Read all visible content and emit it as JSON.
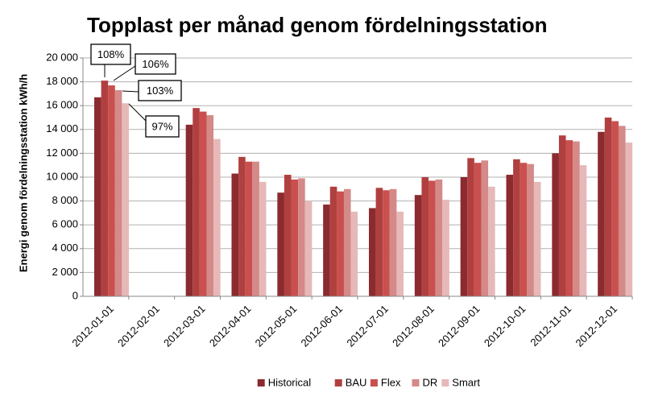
{
  "chart_data": {
    "type": "bar",
    "title": "Topplast per månad genom fördelningsstation",
    "y_label": "Energi genom fördelningsstation  kWh/h",
    "categories": [
      "2012-01-01",
      "2012-02-01",
      "2012-03-01",
      "2012-04-01",
      "2012-05-01",
      "2012-06-01",
      "2012-07-01",
      "2012-08-01",
      "2012-09-01",
      "2012-10-01",
      "2012-11-01",
      "2012-12-01"
    ],
    "series": [
      {
        "name": "Historical",
        "color": "#8b2a2f",
        "values": [
          16700,
          null,
          14400,
          10300,
          8700,
          7700,
          7400,
          8500,
          10000,
          10200,
          12000,
          13800
        ]
      },
      {
        "name": "BAU",
        "color": "#b0403f",
        "values": [
          18100,
          null,
          15800,
          11700,
          10200,
          9200,
          9100,
          10000,
          11600,
          11500,
          13500,
          15000
        ]
      },
      {
        "name": "Flex",
        "color": "#c9504e",
        "values": [
          17700,
          null,
          15500,
          11300,
          9800,
          8800,
          8900,
          9700,
          11200,
          11200,
          13100,
          14700
        ]
      },
      {
        "name": "DR",
        "color": "#d48a88",
        "values": [
          17300,
          null,
          15200,
          11300,
          9900,
          9000,
          9000,
          9800,
          11400,
          11100,
          13000,
          14300
        ]
      },
      {
        "name": "Smart",
        "color": "#e6b9b8",
        "values": [
          16200,
          null,
          13200,
          9600,
          8000,
          7100,
          7100,
          8100,
          9200,
          9600,
          11000,
          12900
        ]
      }
    ],
    "annotations": [
      "108%",
      "106%",
      "103%",
      "97%"
    ],
    "ylim": [
      0,
      20000
    ],
    "yticks": [
      0,
      {
        "value": 2000,
        "label": "2 000"
      },
      {
        "value": 4000,
        "label": "4 000"
      },
      {
        "value": 6000,
        "label": "6 000"
      },
      {
        "value": 8000,
        "label": "8 000"
      },
      {
        "value": 10000,
        "label": "10 000"
      },
      {
        "value": 12000,
        "label": "12 000"
      },
      {
        "value": 14000,
        "label": "14 000"
      },
      {
        "value": 16000,
        "label": "16 000"
      },
      {
        "value": 18000,
        "label": "18 000"
      },
      {
        "value": 20000,
        "label": "20 000"
      }
    ],
    "grid": true,
    "legend": "bottom"
  }
}
